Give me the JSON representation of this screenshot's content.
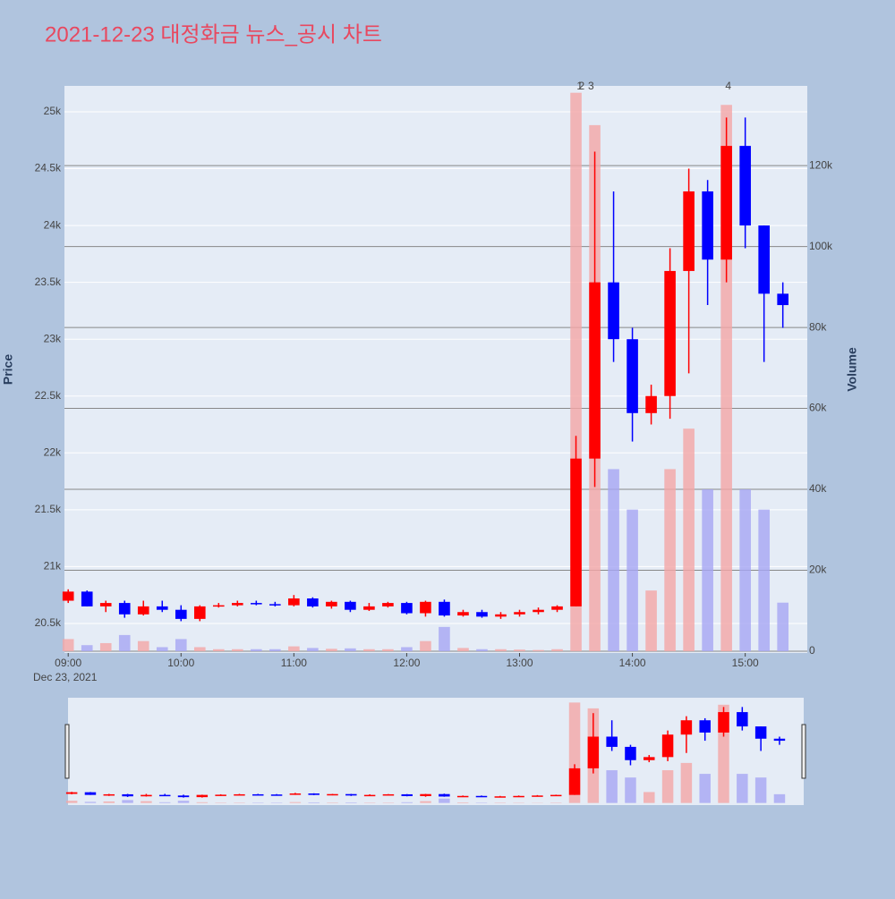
{
  "chart_data": {
    "type": "candlestick",
    "title": "2021-12-23 대정화금 뉴스_공시 차트",
    "y_title": "Price",
    "y2_title": "Volume",
    "date_label": "Dec 23, 2021",
    "x": [
      "09:00",
      "09:10",
      "09:20",
      "09:30",
      "09:40",
      "09:50",
      "10:00",
      "10:10",
      "10:20",
      "10:30",
      "10:40",
      "10:50",
      "11:00",
      "11:10",
      "11:20",
      "11:30",
      "11:40",
      "11:50",
      "12:00",
      "12:10",
      "12:20",
      "12:30",
      "12:40",
      "12:50",
      "13:00",
      "13:10",
      "13:20",
      "13:30",
      "13:40",
      "13:50",
      "14:00",
      "14:10",
      "14:20",
      "14:30",
      "14:40",
      "14:50",
      "15:00",
      "15:10",
      "15:20"
    ],
    "open": [
      20700,
      20780,
      20650,
      20680,
      20580,
      20650,
      20620,
      20540,
      20650,
      20660,
      20680,
      20670,
      20660,
      20720,
      20650,
      20690,
      20620,
      20650,
      20680,
      20590,
      20690,
      20570,
      20600,
      20560,
      20580,
      20600,
      20620,
      20650,
      21950,
      23500,
      23000,
      22350,
      22500,
      23600,
      24300,
      23700,
      24700,
      24000,
      23400
    ],
    "high": [
      20800,
      20790,
      20700,
      20700,
      20700,
      20700,
      20660,
      20660,
      20680,
      20700,
      20700,
      20690,
      20750,
      20730,
      20700,
      20700,
      20680,
      20690,
      20690,
      20700,
      20710,
      20620,
      20620,
      20600,
      20620,
      20640,
      20660,
      22150,
      24650,
      24300,
      23100,
      22600,
      23800,
      24500,
      24400,
      24950,
      24950,
      24000,
      23500
    ],
    "low": [
      20680,
      20650,
      20600,
      20550,
      20570,
      20600,
      20520,
      20520,
      20640,
      20650,
      20660,
      20650,
      20650,
      20640,
      20630,
      20600,
      20610,
      20640,
      20580,
      20560,
      20560,
      20560,
      20550,
      20540,
      20560,
      20580,
      20600,
      20650,
      21700,
      22800,
      22100,
      22250,
      22300,
      22700,
      23300,
      23500,
      23800,
      22800,
      23100
    ],
    "close": [
      20780,
      20650,
      20680,
      20580,
      20650,
      20620,
      20540,
      20650,
      20660,
      20680,
      20670,
      20660,
      20720,
      20650,
      20690,
      20620,
      20650,
      20680,
      20590,
      20690,
      20570,
      20600,
      20560,
      20580,
      20600,
      20620,
      20650,
      21950,
      23500,
      23000,
      22350,
      22500,
      23600,
      24300,
      23700,
      24700,
      24000,
      23400,
      23300
    ],
    "volume": [
      3000,
      1500,
      2000,
      4000,
      2500,
      1000,
      3000,
      1000,
      500,
      500,
      500,
      500,
      1200,
      800,
      600,
      700,
      500,
      500,
      1000,
      2500,
      6000,
      800,
      500,
      500,
      400,
      300,
      500,
      138000,
      130000,
      45000,
      35000,
      15000,
      45000,
      55000,
      40000,
      135000,
      40000,
      35000,
      12000
    ],
    "increasing_color": "#ff0000",
    "decreasing_color": "#0000ff",
    "volume_increasing_color": "#f4a6a6",
    "volume_decreasing_color": "#a6a6f4",
    "xlim": [
      "08:58",
      "15:33"
    ],
    "xticks": [
      "09:00",
      "10:00",
      "11:00",
      "12:00",
      "13:00",
      "14:00",
      "15:00"
    ],
    "ylim": [
      20240,
      25228
    ],
    "yticks": [
      {
        "value": 20500,
        "label": "20.5k"
      },
      {
        "value": 21000,
        "label": "21k"
      },
      {
        "value": 21500,
        "label": "21.5k"
      },
      {
        "value": 22000,
        "label": "22k"
      },
      {
        "value": 22500,
        "label": "22.5k"
      },
      {
        "value": 23000,
        "label": "23k"
      },
      {
        "value": 23500,
        "label": "23.5k"
      },
      {
        "value": 24000,
        "label": "24k"
      },
      {
        "value": 24500,
        "label": "24.5k"
      },
      {
        "value": 25000,
        "label": "25k"
      }
    ],
    "y2lim": [
      -442,
      139700
    ],
    "y2ticks": [
      0,
      {
        "value": 20000,
        "label": "20k"
      },
      {
        "value": 40000,
        "label": "40k"
      },
      {
        "value": 60000,
        "label": "60k"
      },
      {
        "value": 80000,
        "label": "80k"
      },
      {
        "value": 100000,
        "label": "100k"
      },
      {
        "value": 120000,
        "label": "120k"
      }
    ],
    "annotations": [
      {
        "text": "1",
        "x": "13:32"
      },
      {
        "text": "2",
        "x": "13:33"
      },
      {
        "text": "3",
        "x": "13:38"
      },
      {
        "text": "4",
        "x": "14:51"
      }
    ]
  }
}
